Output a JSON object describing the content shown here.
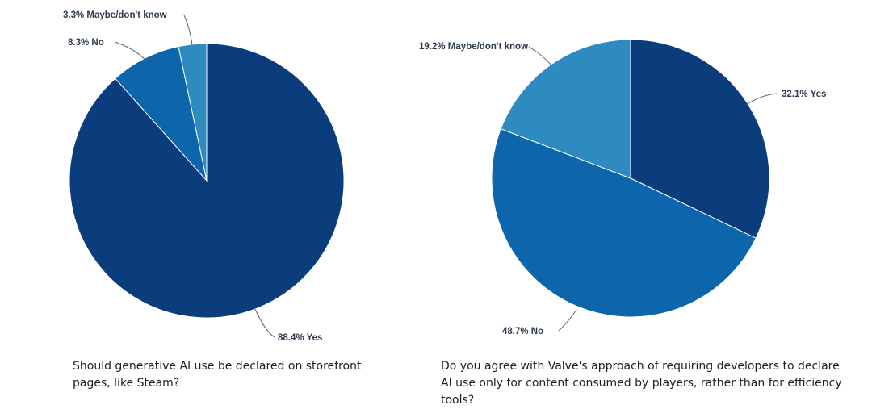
{
  "chart_data": [
    {
      "type": "pie",
      "title": "Should generative AI use be declared on storefront pages, like Steam?",
      "slices": [
        {
          "name": "Yes",
          "value": 88.4,
          "label": "88.4% Yes",
          "color": "#0b3c7c"
        },
        {
          "name": "No",
          "value": 8.3,
          "label": "8.3% No",
          "color": "#0d66ab"
        },
        {
          "name": "Maybe/don't know",
          "value": 3.3,
          "label": "3.3% Maybe/don't know",
          "color": "#2d8bc0"
        }
      ]
    },
    {
      "type": "pie",
      "title": "Do you agree with Valve's approach of requiring developers to declare AI use only for content consumed by players, rather than for efficiency tools?",
      "slices": [
        {
          "name": "Yes",
          "value": 32.1,
          "label": "32.1% Yes",
          "color": "#0b3c7c"
        },
        {
          "name": "No",
          "value": 48.7,
          "label": "48.7% No",
          "color": "#0d66ab"
        },
        {
          "name": "Maybe/don't know",
          "value": 19.2,
          "label": "19.2% Maybe/don't know",
          "color": "#2d8bc0"
        }
      ]
    }
  ]
}
